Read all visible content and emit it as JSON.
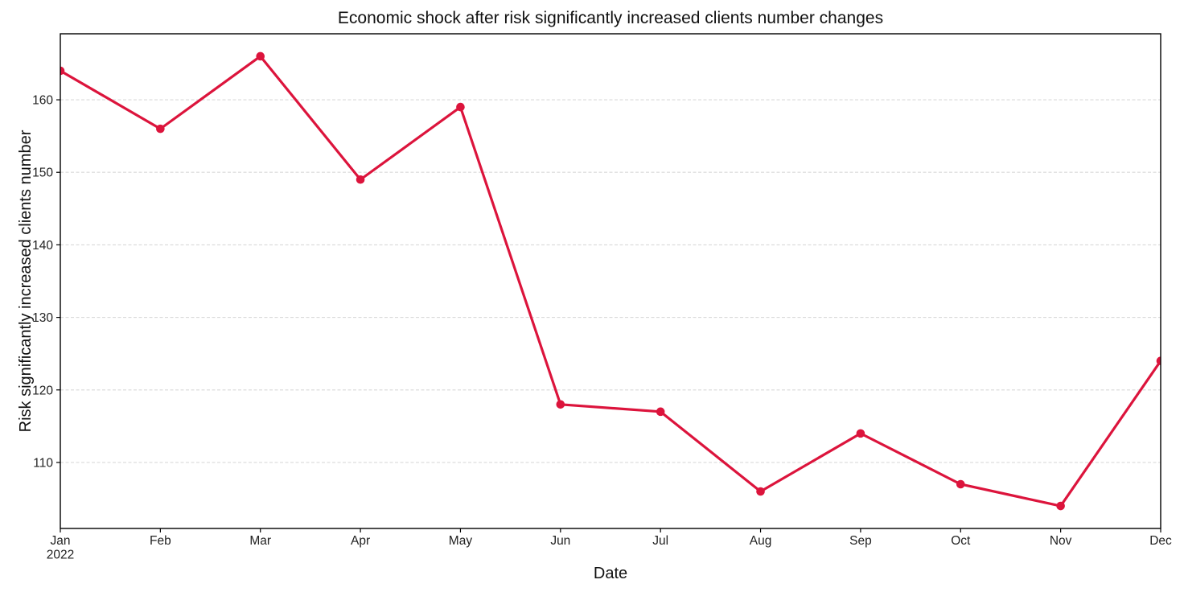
{
  "chart_data": {
    "type": "line",
    "title": "Economic shock after risk significantly increased clients number changes",
    "xlabel": "Date",
    "ylabel": "Risk significantly increased clients number",
    "categories": [
      "Jan 2022",
      "Feb",
      "Mar",
      "Apr",
      "May",
      "Jun",
      "Jul",
      "Aug",
      "Sep",
      "Oct",
      "Nov",
      "Dec"
    ],
    "x_tick_labels": [
      [
        "Jan",
        "2022"
      ],
      [
        "Feb"
      ],
      [
        "Mar"
      ],
      [
        "Apr"
      ],
      [
        "May"
      ],
      [
        "Jun"
      ],
      [
        "Jul"
      ],
      [
        "Aug"
      ],
      [
        "Sep"
      ],
      [
        "Oct"
      ],
      [
        "Nov"
      ],
      [
        "Dec"
      ]
    ],
    "values": [
      164,
      156,
      166,
      149,
      159,
      118,
      117,
      106,
      114,
      107,
      104,
      124
    ],
    "yticks": [
      110,
      120,
      130,
      140,
      150,
      160
    ],
    "ylim": [
      100.9,
      169.1
    ],
    "line_color": "#DC143C",
    "marker": "circle",
    "grid": "horizontal-dashed",
    "legend_position": "none"
  }
}
